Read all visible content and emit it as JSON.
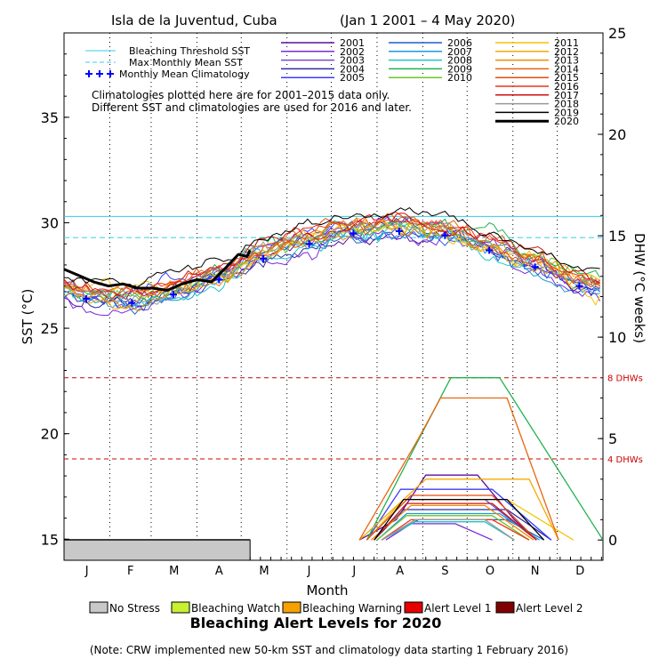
{
  "chart_data": {
    "type": "line",
    "title": "Isla de la Juventud, Cuba",
    "date_range": "(Jan 1 2001 – 4 May 2020)",
    "xlabel": "Month",
    "ylabel_left": "SST (°C)",
    "ylabel_right": "DHW (°C weeks)",
    "months": [
      "J",
      "F",
      "M",
      "A",
      "M",
      "J",
      "J",
      "A",
      "S",
      "O",
      "N",
      "D"
    ],
    "x_range_days": [
      0,
      365
    ],
    "ylim_sst": [
      14,
      39
    ],
    "yticks_sst": [
      15,
      20,
      25,
      30,
      35
    ],
    "ylim_dhw": [
      -1,
      25
    ],
    "yticks_dhw": [
      0,
      5,
      10,
      15,
      20,
      25
    ],
    "grid": "dotted vertical at month starts",
    "bleaching_threshold_sst": 30.3,
    "max_monthly_mean_sst": 29.3,
    "dhw_reference_lines": [
      {
        "value": 8,
        "label": "8 DHWs"
      },
      {
        "value": 4,
        "label": "4 DHWs"
      }
    ],
    "legend_lines": [
      {
        "label": "Bleaching Threshold SST",
        "color": "#33ccee",
        "style": "solid"
      },
      {
        "label": "Max Monthly Mean SST",
        "color": "#33ccee",
        "style": "dashed"
      },
      {
        "label": "Monthly Mean Climatology",
        "color": "#0000ff",
        "style": "plus"
      }
    ],
    "climatology_note": [
      "Climatologies plotted here are for 2001–2015 data only.",
      "Different SST and climatologies are used for 2016 and later."
    ],
    "monthly_mean_climatology": [
      {
        "day": 15,
        "value": 26.4
      },
      {
        "day": 46,
        "value": 26.2
      },
      {
        "day": 74,
        "value": 26.6
      },
      {
        "day": 105,
        "value": 27.3
      },
      {
        "day": 135,
        "value": 28.3
      },
      {
        "day": 166,
        "value": 29.0
      },
      {
        "day": 196,
        "value": 29.5
      },
      {
        "day": 227,
        "value": 29.6
      },
      {
        "day": 258,
        "value": 29.4
      },
      {
        "day": 288,
        "value": 28.7
      },
      {
        "day": 319,
        "value": 27.9
      },
      {
        "day": 349,
        "value": 27.0
      }
    ],
    "series": [
      {
        "name": "2001",
        "color": "#5a0fa0",
        "width": 1,
        "sst_offset": 0.0,
        "noise": 0.5,
        "dhw": [
          [
            200,
            0
          ],
          [
            225,
            1
          ],
          [
            245,
            3.2
          ],
          [
            280,
            3.2
          ],
          [
            305,
            1
          ],
          [
            320,
            0
          ]
        ]
      },
      {
        "name": "2002",
        "color": "#7a2bd6",
        "width": 1,
        "sst_offset": -0.2,
        "noise": 0.5,
        "dhw": [
          [
            218,
            0
          ],
          [
            235,
            0.8
          ],
          [
            265,
            0.8
          ],
          [
            290,
            0
          ]
        ]
      },
      {
        "name": "2003",
        "color": "#6f4bd8",
        "width": 1,
        "sst_offset": 0.1,
        "noise": 0.5,
        "dhw": [
          [
            205,
            0
          ],
          [
            230,
            2.0
          ],
          [
            285,
            2.0
          ],
          [
            320,
            0
          ]
        ]
      },
      {
        "name": "2004",
        "color": "#2d2da6",
        "width": 1,
        "sst_offset": 0.0,
        "noise": 0.5,
        "dhw": [
          [
            210,
            0
          ],
          [
            230,
            1.5
          ],
          [
            300,
            1.5
          ],
          [
            330,
            0
          ]
        ]
      },
      {
        "name": "2005",
        "color": "#3b3bff",
        "width": 1,
        "sst_offset": 0.3,
        "noise": 0.5,
        "dhw": [
          [
            205,
            0
          ],
          [
            228,
            2.5
          ],
          [
            290,
            2.5
          ],
          [
            330,
            0
          ]
        ]
      },
      {
        "name": "2006",
        "color": "#1f5fd0",
        "width": 1,
        "sst_offset": 0.0,
        "noise": 0.5,
        "dhw": [
          [
            215,
            0
          ],
          [
            240,
            1.0
          ],
          [
            300,
            1.0
          ],
          [
            325,
            0
          ]
        ]
      },
      {
        "name": "2007",
        "color": "#1a9ae0",
        "width": 1,
        "sst_offset": -0.1,
        "noise": 0.5,
        "dhw": [
          [
            212,
            0
          ],
          [
            232,
            1.3
          ],
          [
            295,
            1.3
          ],
          [
            322,
            0
          ]
        ]
      },
      {
        "name": "2008",
        "color": "#21c4c4",
        "width": 1,
        "sst_offset": 0.0,
        "noise": 0.5,
        "dhw": [
          [
            215,
            0
          ],
          [
            238,
            0.9
          ],
          [
            285,
            0.9
          ],
          [
            305,
            0
          ]
        ]
      },
      {
        "name": "2009",
        "color": "#21b24f",
        "width": 1,
        "sst_offset": 0.5,
        "noise": 0.5,
        "dhw": [
          [
            205,
            0
          ],
          [
            232,
            3.8
          ],
          [
            262,
            8.0
          ],
          [
            295,
            8.0
          ],
          [
            330,
            4.0
          ],
          [
            365,
            0
          ]
        ]
      },
      {
        "name": "2010",
        "color": "#6cc52a",
        "width": 1,
        "sst_offset": 0.3,
        "noise": 0.5,
        "dhw": [
          [
            212,
            0
          ],
          [
            232,
            1.2
          ],
          [
            290,
            1.2
          ],
          [
            315,
            0
          ]
        ]
      },
      {
        "name": "2011",
        "color": "#f5c400",
        "width": 1,
        "sst_offset": 0.2,
        "noise": 0.6,
        "dhw": [
          [
            205,
            0
          ],
          [
            230,
            2.0
          ],
          [
            300,
            2.0
          ],
          [
            345,
            0
          ]
        ]
      },
      {
        "name": "2012",
        "color": "#f7a900",
        "width": 1,
        "sst_offset": 0.2,
        "noise": 0.5,
        "dhw": [
          [
            200,
            0
          ],
          [
            245,
            3.0
          ],
          [
            280,
            3.0
          ],
          [
            315,
            3.0
          ],
          [
            335,
            0
          ]
        ]
      },
      {
        "name": "2013",
        "color": "#f08c00",
        "width": 1,
        "sst_offset": 0.1,
        "noise": 0.5,
        "dhw": [
          [
            208,
            0
          ],
          [
            235,
            1.7
          ],
          [
            285,
            1.7
          ],
          [
            318,
            0
          ]
        ]
      },
      {
        "name": "2014",
        "color": "#e8650c",
        "width": 1,
        "sst_offset": 0.5,
        "noise": 0.5,
        "dhw": [
          [
            200,
            0
          ],
          [
            240,
            5.0
          ],
          [
            255,
            7.0
          ],
          [
            300,
            7.0
          ],
          [
            335,
            0
          ]
        ]
      },
      {
        "name": "2015",
        "color": "#e84a0c",
        "width": 1,
        "sst_offset": 0.4,
        "noise": 0.5,
        "dhw": [
          [
            205,
            0
          ],
          [
            235,
            2.2
          ],
          [
            290,
            2.2
          ],
          [
            320,
            0
          ]
        ]
      },
      {
        "name": "2016",
        "color": "#f0321e",
        "width": 1,
        "sst_offset": 0.4,
        "noise": 0.4,
        "dhw": [
          [
            215,
            0
          ],
          [
            235,
            1.0
          ],
          [
            290,
            1.0
          ],
          [
            315,
            0
          ]
        ]
      },
      {
        "name": "2017",
        "color": "#d01010",
        "width": 1,
        "sst_offset": 0.6,
        "noise": 0.4,
        "dhw": [
          [
            210,
            0
          ],
          [
            232,
            1.8
          ],
          [
            290,
            1.8
          ],
          [
            320,
            0
          ]
        ]
      },
      {
        "name": "2018",
        "color": "#999999",
        "width": 1,
        "sst_offset": 0.3,
        "noise": 0.4,
        "dhw": [
          [
            215,
            0
          ],
          [
            238,
            1.0
          ],
          [
            285,
            1.0
          ],
          [
            305,
            0
          ]
        ]
      },
      {
        "name": "2019",
        "color": "#000000",
        "width": 1,
        "sst_offset": 0.9,
        "noise": 0.3,
        "dhw": [
          [
            210,
            0
          ],
          [
            230,
            2.0
          ],
          [
            270,
            2.0
          ],
          [
            300,
            2.0
          ],
          [
            325,
            0
          ]
        ]
      },
      {
        "name": "2020",
        "color": "#000000",
        "width": 3,
        "sst_points": [
          [
            0,
            27.8
          ],
          [
            10,
            27.5
          ],
          [
            20,
            27.2
          ],
          [
            30,
            27.0
          ],
          [
            40,
            27.1
          ],
          [
            50,
            26.9
          ],
          [
            60,
            26.9
          ],
          [
            70,
            26.8
          ],
          [
            80,
            27.1
          ],
          [
            90,
            27.3
          ],
          [
            100,
            27.2
          ],
          [
            110,
            27.9
          ],
          [
            118,
            28.5
          ],
          [
            124,
            28.4
          ],
          [
            126,
            28.7
          ]
        ],
        "dhw": [
          [
            0,
            0
          ],
          [
            126,
            0
          ]
        ]
      }
    ],
    "alert_legend": [
      {
        "label": "No Stress",
        "color": "#c8c8c8"
      },
      {
        "label": "Bleaching Watch",
        "color": "#c8f032"
      },
      {
        "label": "Bleaching Warning",
        "color": "#f5a200"
      },
      {
        "label": "Alert Level 1",
        "color": "#e60000"
      },
      {
        "label": "Alert Level 2",
        "color": "#800000"
      }
    ],
    "alert_strip_2020": [
      {
        "start_day": 0,
        "end_day": 126,
        "level": "No Stress"
      }
    ],
    "alert_title": "Bleaching Alert Levels for 2020",
    "footnote": "(Note: CRW implemented new 50-km SST and climatology data starting 1 February 2016)"
  }
}
